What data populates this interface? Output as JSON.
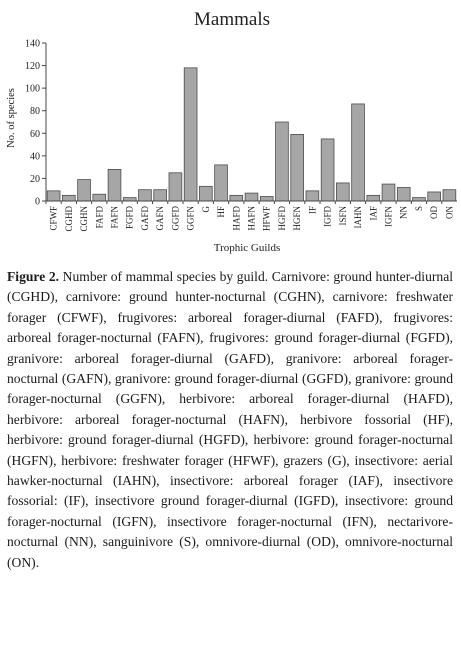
{
  "chart_data": {
    "type": "bar",
    "title": "Mammals",
    "xlabel": "Trophic Guilds",
    "ylabel": "No. of species",
    "ylim": [
      0,
      140
    ],
    "yticks": [
      0,
      20,
      40,
      60,
      80,
      100,
      120,
      140
    ],
    "grid": false,
    "legend": "none",
    "bar_color": "#a6a6a6",
    "categories": [
      "CFWF",
      "CGHD",
      "CGHN",
      "FAFD",
      "FAFN",
      "FGFD",
      "GAFD",
      "GAFN",
      "GGFD",
      "GGFN",
      "G",
      "HF",
      "HAFD",
      "HAFN",
      "HFWF",
      "HGFD",
      "HGFN",
      "IF",
      "IGFD",
      "ISFN",
      "IAHN",
      "IAF",
      "IGFN",
      "NN",
      "S",
      "OD",
      "ON"
    ],
    "values": [
      9,
      5,
      19,
      6,
      28,
      3,
      10,
      10,
      25,
      118,
      13,
      32,
      5,
      7,
      4,
      70,
      59,
      9,
      55,
      16,
      86,
      5,
      15,
      12,
      3,
      8,
      10
    ]
  },
  "caption": {
    "label": "Figure 2.",
    "text": " Number of mammal species by guild. Carnivore: ground hunter-diurnal (CGHD), carnivore: ground hunter-nocturnal (CGHN), carnivore: freshwater forager (CFWF), frugivores: arboreal forager-diurnal (FAFD), frugivores: arboreal forager-nocturnal (FAFN), frugivores: ground forager-diurnal (FGFD), granivore: arboreal forager-diurnal (GAFD), granivore: arboreal forager-nocturnal (GAFN), granivore: ground forager-diurnal (GGFD), granivore: ground forager-nocturnal (GGFN), herbivore: arboreal forager-diurnal (HAFD), herbivore: arboreal forager-nocturnal (HAFN), herbivore fossorial (HF), herbivore: ground forager-diurnal (HGFD), herbivore: ground forager-nocturnal (HGFN), herbivore: freshwater forager (HFWF), grazers (G), insectivore: aerial hawker-nocturnal (IAHN), insectivore: arboreal forager (IAF), insectivore fossorial: (IF), insectivore ground forager-diurnal (IGFD), insectivore: ground forager-nocturnal (IGFN), insectivore forager-nocturnal (IFN), nectarivore-nocturnal (NN), sanguinivore (S), omnivore-diurnal (OD), omnivore-nocturnal (ON)."
  }
}
